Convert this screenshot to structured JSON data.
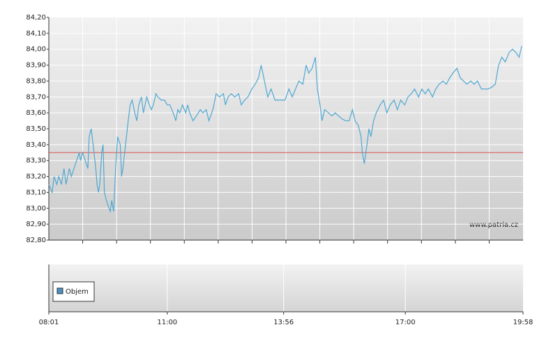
{
  "chart_data": {
    "type": "line",
    "x": [
      481,
      486,
      489,
      493,
      496,
      500,
      504,
      507,
      512,
      515,
      519,
      523,
      527,
      529,
      532,
      536,
      540,
      542,
      545,
      548,
      552,
      554,
      556,
      558,
      561,
      563,
      565,
      568,
      572,
      574,
      576,
      579,
      582,
      585,
      589,
      591,
      593,
      597,
      601,
      604,
      607,
      611,
      614,
      617,
      621,
      624,
      629,
      633,
      636,
      639,
      643,
      646,
      651,
      656,
      660,
      664,
      669,
      673,
      676,
      679,
      683,
      688,
      691,
      694,
      699,
      704,
      710,
      714,
      719,
      723,
      729,
      734,
      739,
      745,
      748,
      752,
      757,
      762,
      768,
      772,
      777,
      782,
      788,
      793,
      798,
      802,
      807,
      812,
      817,
      823,
      828,
      833,
      838,
      844,
      849,
      854,
      859,
      865,
      870,
      874,
      879,
      884,
      887,
      891,
      894,
      898,
      904,
      909,
      914,
      919,
      925,
      930,
      935,
      940,
      944,
      949,
      953,
      955,
      958,
      962,
      965,
      968,
      972,
      976,
      982,
      987,
      992,
      997,
      1003,
      1008,
      1013,
      1019,
      1024,
      1029,
      1034,
      1040,
      1045,
      1050,
      1055,
      1061,
      1066,
      1071,
      1077,
      1082,
      1087,
      1092,
      1098,
      1103,
      1108,
      1113,
      1119,
      1124,
      1129,
      1135,
      1140,
      1145,
      1150,
      1156,
      1161,
      1166,
      1171,
      1177,
      1182,
      1187,
      1192,
      1196
    ],
    "values": [
      83.15,
      83.1,
      83.2,
      83.15,
      83.2,
      83.15,
      83.25,
      83.15,
      83.25,
      83.2,
      83.25,
      83.3,
      83.35,
      83.3,
      83.35,
      83.3,
      83.25,
      83.45,
      83.5,
      83.4,
      83.25,
      83.15,
      83.1,
      83.15,
      83.35,
      83.4,
      83.1,
      83.05,
      83.0,
      82.98,
      83.05,
      82.98,
      83.25,
      83.45,
      83.4,
      83.2,
      83.25,
      83.4,
      83.55,
      83.65,
      83.68,
      83.6,
      83.55,
      83.65,
      83.7,
      83.6,
      83.7,
      83.65,
      83.62,
      83.65,
      83.72,
      83.7,
      83.68,
      83.68,
      83.65,
      83.65,
      83.6,
      83.55,
      83.62,
      83.6,
      83.65,
      83.6,
      83.65,
      83.6,
      83.55,
      83.58,
      83.62,
      83.6,
      83.62,
      83.55,
      83.62,
      83.72,
      83.7,
      83.72,
      83.65,
      83.7,
      83.72,
      83.7,
      83.72,
      83.65,
      83.68,
      83.7,
      83.75,
      83.78,
      83.82,
      83.9,
      83.8,
      83.7,
      83.75,
      83.68,
      83.68,
      83.68,
      83.68,
      83.75,
      83.7,
      83.75,
      83.8,
      83.78,
      83.9,
      83.85,
      83.88,
      83.95,
      83.75,
      83.65,
      83.55,
      83.62,
      83.6,
      83.58,
      83.6,
      83.58,
      83.56,
      83.55,
      83.55,
      83.62,
      83.55,
      83.52,
      83.45,
      83.35,
      83.28,
      83.4,
      83.5,
      83.45,
      83.55,
      83.6,
      83.65,
      83.68,
      83.6,
      83.65,
      83.68,
      83.62,
      83.68,
      83.65,
      83.7,
      83.72,
      83.75,
      83.7,
      83.75,
      83.72,
      83.75,
      83.7,
      83.75,
      83.78,
      83.8,
      83.78,
      83.82,
      83.85,
      83.88,
      83.82,
      83.8,
      83.78,
      83.8,
      83.78,
      83.8,
      83.75,
      83.75,
      83.75,
      83.76,
      83.78,
      83.9,
      83.95,
      83.92,
      83.98,
      84.0,
      83.98,
      83.95,
      84.02
    ],
    "color": "#4ea8d2",
    "reference_line": {
      "value": 83.35,
      "color": "#d9534f"
    },
    "xlim": [
      481,
      1198
    ],
    "xticks": [
      {
        "value": 481,
        "label": "08:01"
      },
      {
        "value": 660,
        "label": "11:00"
      },
      {
        "value": 836,
        "label": "13:56"
      },
      {
        "value": 1020,
        "label": "17:00"
      },
      {
        "value": 1198,
        "label": "19:58"
      }
    ],
    "ylim": [
      82.8,
      84.2
    ],
    "yticks": [
      {
        "value": 82.8,
        "label": "82,80"
      },
      {
        "value": 82.9,
        "label": "82,90"
      },
      {
        "value": 83.0,
        "label": "83,00"
      },
      {
        "value": 83.1,
        "label": "83,10"
      },
      {
        "value": 83.2,
        "label": "83,20"
      },
      {
        "value": 83.3,
        "label": "83,30"
      },
      {
        "value": 83.4,
        "label": "83,40"
      },
      {
        "value": 83.5,
        "label": "83,50"
      },
      {
        "value": 83.6,
        "label": "83,60"
      },
      {
        "value": 83.7,
        "label": "83,70"
      },
      {
        "value": 83.8,
        "label": "83,80"
      },
      {
        "value": 83.9,
        "label": "83,90"
      },
      {
        "value": 84.0,
        "label": "84,00"
      },
      {
        "value": 84.1,
        "label": "84,10"
      },
      {
        "value": 84.2,
        "label": "84,20"
      }
    ],
    "grid": true,
    "watermark": "www.patria.cz",
    "volume_panel": {
      "legend": "Objem",
      "color": "#4a8fc4"
    }
  }
}
